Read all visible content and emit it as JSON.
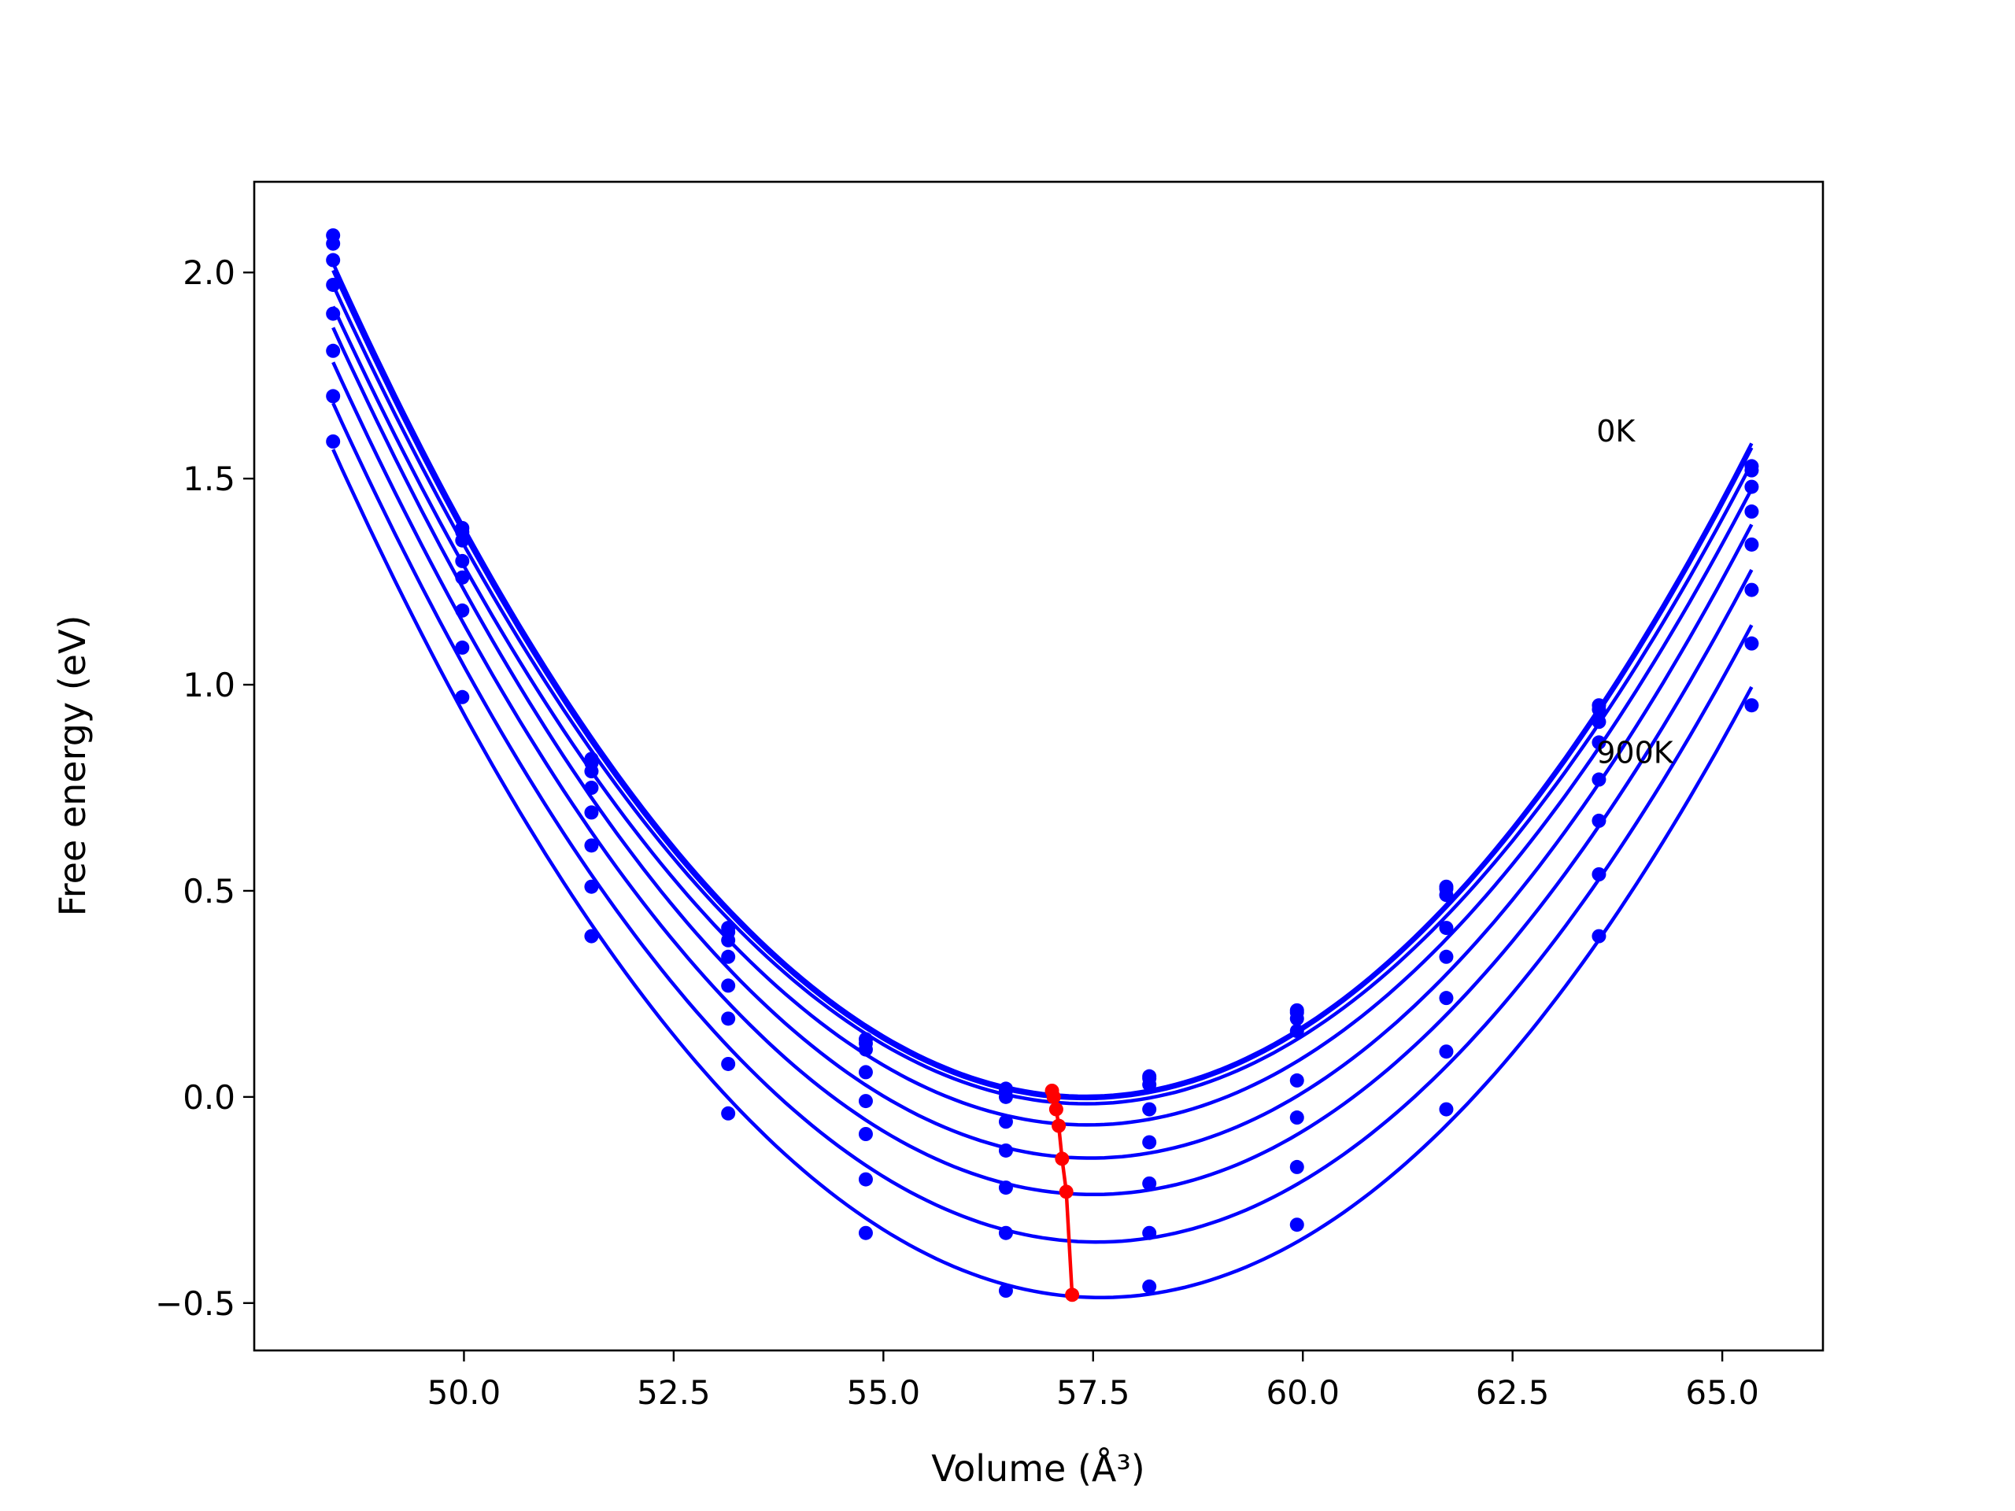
{
  "chart_data": {
    "type": "line",
    "title": "",
    "xlabel": "Volume (Å³)",
    "ylabel": "Free energy (eV)",
    "xlim": [
      47.5,
      66.2
    ],
    "ylim": [
      -0.615,
      2.22
    ],
    "xticks": [
      50.0,
      52.5,
      55.0,
      57.5,
      60.0,
      62.5,
      65.0
    ],
    "yticks": [
      -0.5,
      0.0,
      0.5,
      1.0,
      1.5,
      2.0
    ],
    "xtick_labels": [
      "50.0",
      "52.5",
      "55.0",
      "57.5",
      "60.0",
      "62.5",
      "65.0"
    ],
    "ytick_labels": [
      "−0.5",
      "0.0",
      "0.5",
      "1.0",
      "1.5",
      "2.0"
    ],
    "grid": false,
    "x": [
      48.44,
      49.98,
      51.52,
      53.15,
      54.79,
      56.46,
      58.17,
      59.93,
      61.71,
      63.53,
      65.35
    ],
    "series": [
      {
        "values": [
          2.09,
          1.38,
          0.82,
          0.41,
          0.14,
          0.02,
          0.05,
          0.21,
          0.51,
          0.95,
          1.53
        ]
      },
      {
        "values": [
          2.07,
          1.37,
          0.81,
          0.4,
          0.13,
          0.015,
          0.045,
          0.205,
          0.505,
          0.94,
          1.52
        ]
      },
      {
        "values": [
          2.03,
          1.35,
          0.79,
          0.38,
          0.115,
          0.0,
          0.03,
          0.19,
          0.49,
          0.91,
          1.48
        ]
      },
      {
        "values": [
          1.97,
          1.3,
          0.75,
          0.34,
          0.06,
          -0.06,
          -0.03,
          0.16,
          0.41,
          0.86,
          1.42
        ]
      },
      {
        "values": [
          1.9,
          1.26,
          0.69,
          0.27,
          -0.01,
          -0.13,
          -0.11,
          0.04,
          0.34,
          0.77,
          1.34
        ]
      },
      {
        "values": [
          1.81,
          1.18,
          0.61,
          0.19,
          -0.09,
          -0.22,
          -0.21,
          -0.05,
          0.24,
          0.67,
          1.23
        ]
      },
      {
        "values": [
          1.7,
          1.09,
          0.51,
          0.08,
          -0.2,
          -0.33,
          -0.33,
          -0.17,
          0.11,
          0.54,
          1.1
        ]
      },
      {
        "values": [
          1.59,
          0.97,
          0.39,
          -0.04,
          -0.33,
          -0.47,
          -0.46,
          -0.31,
          -0.03,
          0.39,
          0.95
        ]
      }
    ],
    "minima": {
      "x": [
        57.01,
        57.03,
        57.06,
        57.09,
        57.13,
        57.18,
        57.25
      ],
      "y": [
        0.015,
        0.0,
        -0.03,
        -0.07,
        -0.15,
        -0.23,
        -0.48
      ]
    },
    "annotations": [
      {
        "text": "0K",
        "x": 63.5,
        "y": 1.59
      },
      {
        "text": "900K",
        "x": 63.5,
        "y": 0.81
      }
    ],
    "colors": {
      "curves": "#0000ff",
      "minima": "#ff0000"
    }
  }
}
